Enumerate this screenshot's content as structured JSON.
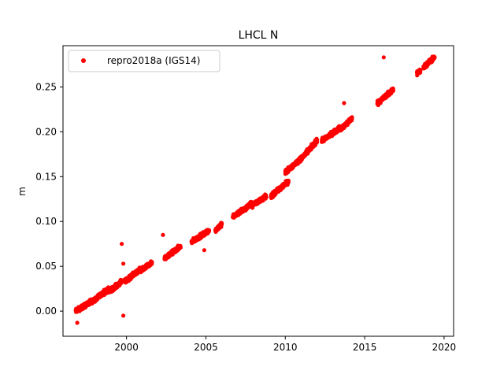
{
  "chart_data": {
    "type": "scatter",
    "title": "LHCL N",
    "xlabel": "",
    "ylabel": "m",
    "xlim": [
      1996.0,
      2020.6
    ],
    "ylim": [
      -0.028,
      0.296
    ],
    "x_ticks": [
      2000,
      2005,
      2010,
      2015,
      2020
    ],
    "y_ticks": [
      0.0,
      0.05,
      0.1,
      0.15,
      0.2,
      0.25
    ],
    "x_tick_labels": [
      "2000",
      "2005",
      "2010",
      "2015",
      "2020"
    ],
    "y_tick_labels": [
      "0.00",
      "0.05",
      "0.10",
      "0.15",
      "0.20",
      "0.25"
    ],
    "grid": false,
    "legend_position": "top-left",
    "series": [
      {
        "name": "repro2018a (IGS14)",
        "color": "#ff0000",
        "marker": "circle",
        "segments": [
          {
            "x0": 1996.8,
            "x1": 1997.9,
            "y0": 0.0,
            "y1": 0.012
          },
          {
            "x0": 1997.9,
            "x1": 1998.9,
            "y0": 0.012,
            "y1": 0.025
          },
          {
            "x0": 1998.9,
            "x1": 1999.7,
            "y0": 0.022,
            "y1": 0.033
          },
          {
            "x0": 1999.9,
            "x1": 2000.9,
            "y0": 0.033,
            "y1": 0.047
          },
          {
            "x0": 2000.9,
            "x1": 2001.6,
            "y0": 0.045,
            "y1": 0.054
          },
          {
            "x0": 2002.4,
            "x1": 2003.4,
            "y0": 0.059,
            "y1": 0.072
          },
          {
            "x0": 2004.1,
            "x1": 2005.2,
            "y0": 0.077,
            "y1": 0.09
          },
          {
            "x0": 2005.6,
            "x1": 2006.0,
            "y0": 0.09,
            "y1": 0.097
          },
          {
            "x0": 2006.7,
            "x1": 2007.9,
            "y0": 0.105,
            "y1": 0.12
          },
          {
            "x0": 2007.9,
            "x1": 2008.8,
            "y0": 0.118,
            "y1": 0.128
          },
          {
            "x0": 2009.1,
            "x1": 2010.2,
            "y0": 0.128,
            "y1": 0.145
          },
          {
            "x0": 2010.0,
            "x1": 2011.0,
            "y0": 0.155,
            "y1": 0.17
          },
          {
            "x0": 2011.0,
            "x1": 2012.0,
            "y0": 0.17,
            "y1": 0.19
          },
          {
            "x0": 2012.3,
            "x1": 2013.5,
            "y0": 0.19,
            "y1": 0.205
          },
          {
            "x0": 2013.5,
            "x1": 2014.2,
            "y0": 0.203,
            "y1": 0.215
          },
          {
            "x0": 2015.8,
            "x1": 2016.8,
            "y0": 0.232,
            "y1": 0.247
          },
          {
            "x0": 2018.3,
            "x1": 2018.5,
            "y0": 0.265,
            "y1": 0.268
          },
          {
            "x0": 2018.7,
            "x1": 2019.4,
            "y0": 0.272,
            "y1": 0.283
          }
        ],
        "outliers": [
          {
            "x": 1996.9,
            "y": -0.013
          },
          {
            "x": 1999.7,
            "y": 0.075
          },
          {
            "x": 1999.8,
            "y": 0.053
          },
          {
            "x": 1999.8,
            "y": -0.005
          },
          {
            "x": 2002.3,
            "y": 0.085
          },
          {
            "x": 2004.9,
            "y": 0.068
          },
          {
            "x": 2013.7,
            "y": 0.232
          },
          {
            "x": 2016.2,
            "y": 0.283
          },
          {
            "x": 2018.5,
            "y": 0.268
          }
        ]
      }
    ]
  }
}
